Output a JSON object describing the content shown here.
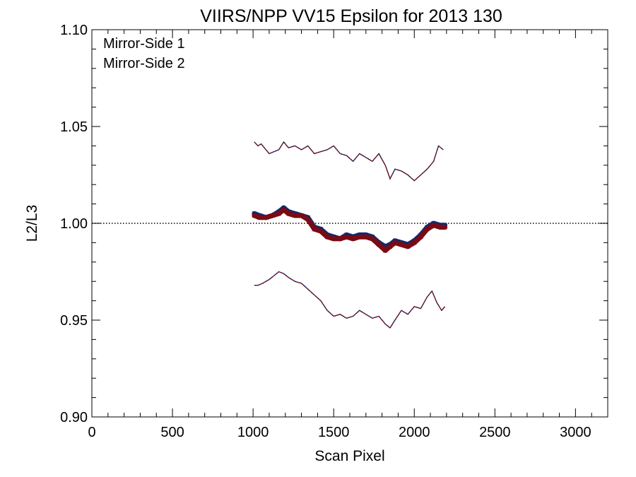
{
  "chart_data": {
    "type": "scatter",
    "title": "VIIRS/NPP VV15 Epsilon for 2013 130",
    "xlabel": "Scan Pixel",
    "ylabel": "L2/L3",
    "xlim": [
      0,
      3200
    ],
    "ylim": [
      0.9,
      1.1
    ],
    "xticks": [
      0,
      500,
      1000,
      1500,
      2000,
      2500,
      3000
    ],
    "xtick_labels": [
      "0",
      "500",
      "1000",
      "1500",
      "2000",
      "2500",
      "3000"
    ],
    "yticks": [
      0.9,
      0.95,
      1.0,
      1.05,
      1.1
    ],
    "ytick_labels": [
      "0.90",
      "0.95",
      "1.00",
      "1.05",
      "1.10"
    ],
    "reference_line": 1.0,
    "legend_position": "top-left",
    "colors": {
      "ms1": "#0d2b6e",
      "ms2": "#7a0a14",
      "reference": "#000000"
    },
    "series": [
      {
        "name": "Mirror-Side 1",
        "color": "#0d2b6e",
        "x": [
          1008,
          1040,
          1080,
          1120,
          1160,
          1190,
          1220,
          1260,
          1300,
          1340,
          1380,
          1420,
          1460,
          1500,
          1540,
          1580,
          1620,
          1660,
          1700,
          1740,
          1780,
          1820,
          1850,
          1880,
          1920,
          1960,
          2000,
          2040,
          2080,
          2120,
          2160,
          2190
        ],
        "y": [
          1.005,
          1.004,
          1.003,
          1.004,
          1.006,
          1.008,
          1.006,
          1.005,
          1.004,
          1.003,
          0.998,
          0.997,
          0.994,
          0.993,
          0.992,
          0.994,
          0.993,
          0.994,
          0.994,
          0.993,
          0.99,
          0.988,
          0.989,
          0.991,
          0.99,
          0.989,
          0.991,
          0.994,
          0.998,
          1.0,
          0.999,
          0.999
        ]
      },
      {
        "name": "Mirror-Side 2",
        "color": "#7a0a14",
        "x": [
          1008,
          1040,
          1080,
          1120,
          1160,
          1190,
          1220,
          1260,
          1300,
          1340,
          1380,
          1420,
          1460,
          1500,
          1540,
          1580,
          1620,
          1660,
          1700,
          1740,
          1780,
          1820,
          1850,
          1880,
          1920,
          1960,
          2000,
          2040,
          2080,
          2120,
          2160,
          2190
        ],
        "y": [
          1.004,
          1.003,
          1.003,
          1.004,
          1.005,
          1.007,
          1.005,
          1.004,
          1.004,
          1.002,
          0.997,
          0.996,
          0.993,
          0.992,
          0.992,
          0.993,
          0.992,
          0.993,
          0.993,
          0.992,
          0.989,
          0.986,
          0.988,
          0.99,
          0.989,
          0.988,
          0.99,
          0.993,
          0.997,
          0.999,
          0.998,
          0.998
        ]
      }
    ],
    "envelope_upper": {
      "x": [
        1008,
        1030,
        1050,
        1080,
        1100,
        1130,
        1160,
        1190,
        1220,
        1260,
        1300,
        1340,
        1380,
        1420,
        1460,
        1500,
        1540,
        1580,
        1620,
        1660,
        1700,
        1740,
        1780,
        1820,
        1850,
        1880,
        1920,
        1960,
        2000,
        2040,
        2080,
        2120,
        2150,
        2180
      ],
      "y": [
        1.042,
        1.04,
        1.041,
        1.038,
        1.036,
        1.037,
        1.038,
        1.042,
        1.039,
        1.04,
        1.038,
        1.04,
        1.036,
        1.037,
        1.038,
        1.04,
        1.036,
        1.035,
        1.032,
        1.036,
        1.034,
        1.032,
        1.036,
        1.03,
        1.023,
        1.028,
        1.027,
        1.025,
        1.022,
        1.025,
        1.028,
        1.032,
        1.04,
        1.038
      ]
    },
    "envelope_lower": {
      "x": [
        1008,
        1030,
        1060,
        1100,
        1130,
        1160,
        1190,
        1220,
        1260,
        1300,
        1340,
        1380,
        1420,
        1460,
        1500,
        1540,
        1580,
        1620,
        1660,
        1700,
        1740,
        1780,
        1820,
        1850,
        1880,
        1920,
        1960,
        2000,
        2040,
        2080,
        2110,
        2140,
        2170,
        2190
      ],
      "y": [
        0.968,
        0.968,
        0.969,
        0.971,
        0.973,
        0.975,
        0.974,
        0.972,
        0.97,
        0.969,
        0.966,
        0.963,
        0.96,
        0.955,
        0.952,
        0.953,
        0.951,
        0.952,
        0.955,
        0.953,
        0.951,
        0.952,
        0.948,
        0.946,
        0.95,
        0.955,
        0.953,
        0.957,
        0.956,
        0.962,
        0.965,
        0.959,
        0.955,
        0.957
      ]
    }
  }
}
